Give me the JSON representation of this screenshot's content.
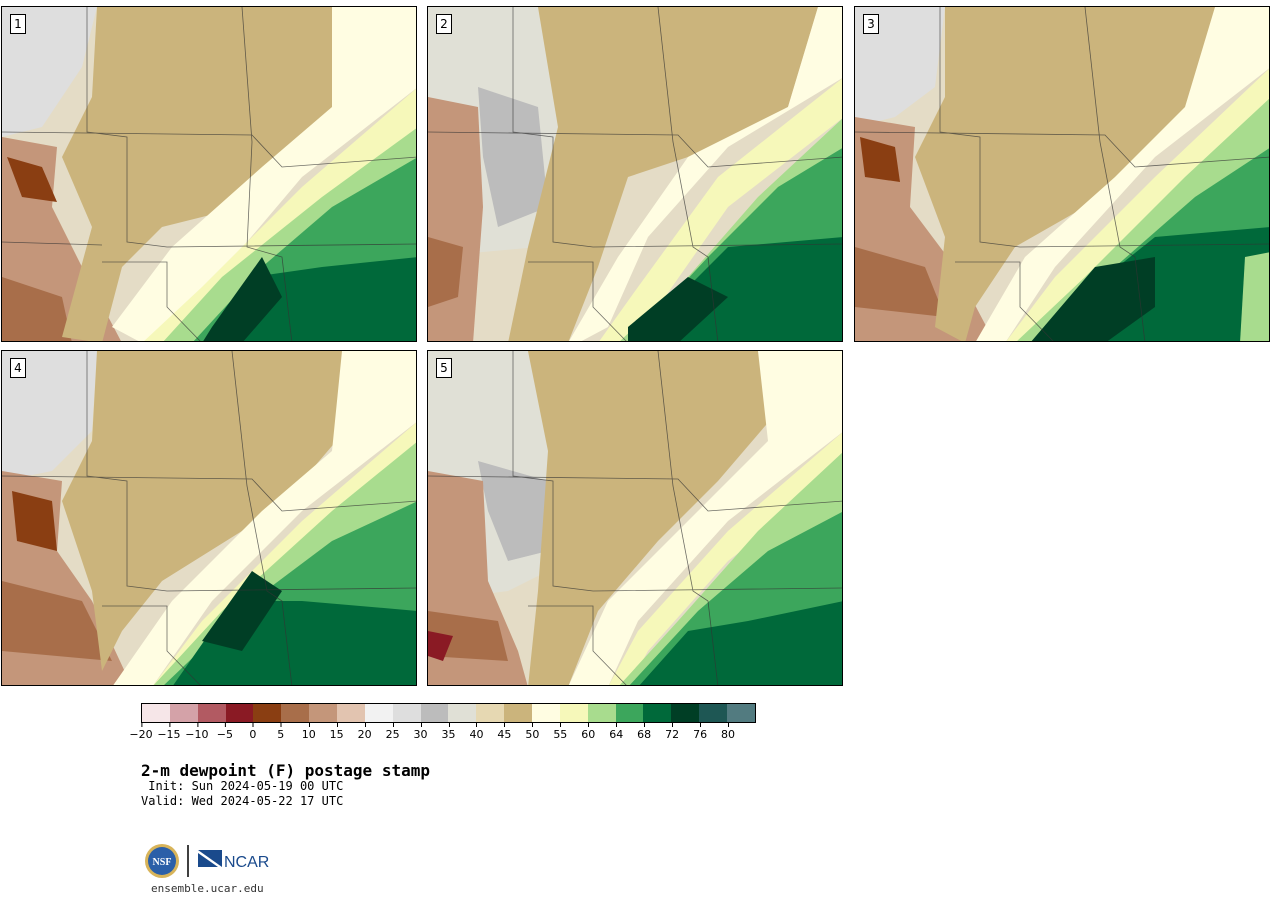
{
  "panels": [
    {
      "label": "1"
    },
    {
      "label": "2"
    },
    {
      "label": "3"
    },
    {
      "label": "4"
    },
    {
      "label": "5"
    }
  ],
  "colorbar": {
    "colors": [
      "#f6e6e8",
      "#d4a2a8",
      "#b25a62",
      "#8a1a24",
      "#8a3e12",
      "#a86e4a",
      "#c4967a",
      "#e2c4b0",
      "#f2f2f2",
      "#dedede",
      "#bcbcbc",
      "#e0e0d6",
      "#e6d8b2",
      "#cbb47c",
      "#fffde2",
      "#f6f8ba",
      "#a8dc8e",
      "#3ca65c",
      "#00693a",
      "#003e25",
      "#1e5754",
      "#527b80"
    ],
    "tick_labels": [
      "-20",
      "-15",
      "-10",
      "-5",
      "0",
      "5",
      "10",
      "15",
      "20",
      "25",
      "30",
      "35",
      "40",
      "45",
      "50",
      "55",
      "60",
      "64",
      "68",
      "72",
      "76",
      "80"
    ]
  },
  "title": "2-m dewpoint (F) postage stamp",
  "init": " Init: Sun 2024-05-19 00 UTC",
  "valid": "Valid: Wed 2024-05-22 17 UTC",
  "logos": {
    "nsf": "NSF",
    "ncar": "NCAR",
    "site": "ensemble.ucar.edu"
  }
}
